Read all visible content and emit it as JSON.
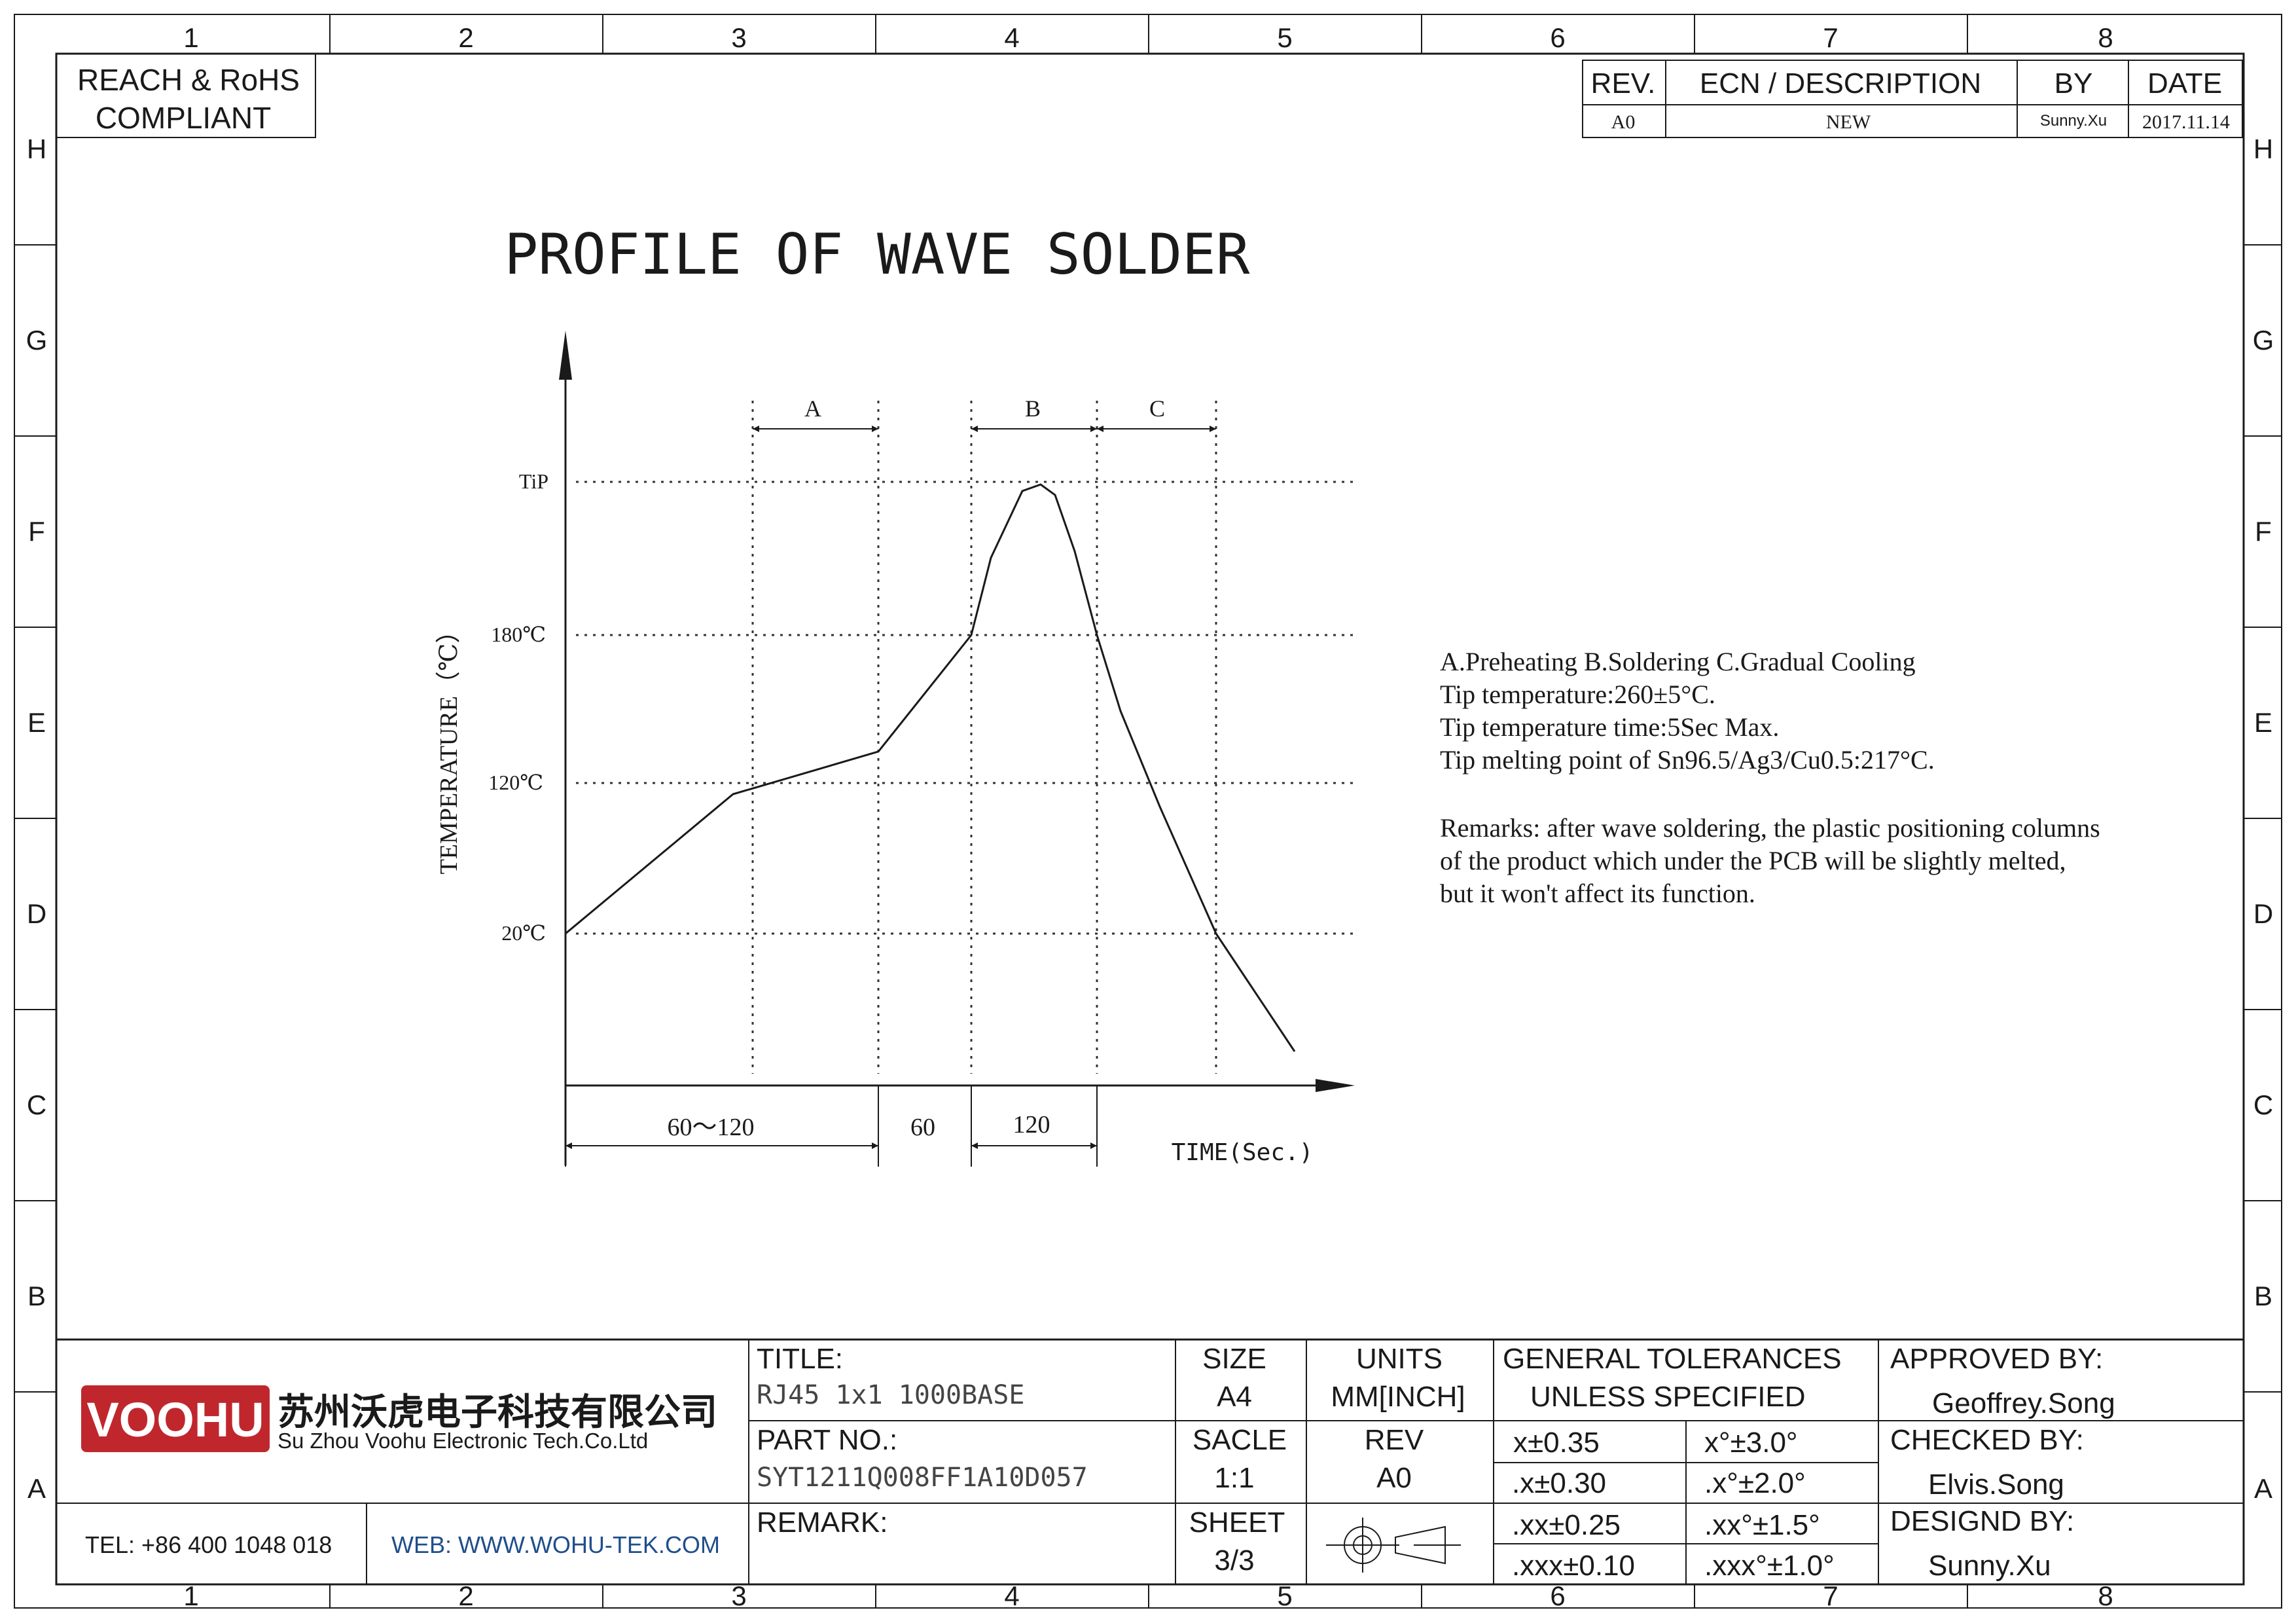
{
  "frame": {
    "columns": [
      "1",
      "2",
      "3",
      "4",
      "5",
      "6",
      "7",
      "8"
    ],
    "rows": [
      "H",
      "G",
      "F",
      "E",
      "D",
      "C",
      "B",
      "A"
    ]
  },
  "compliance": {
    "line1": "REACH & RoHS",
    "line2": "COMPLIANT"
  },
  "revision_table": {
    "headers": {
      "rev": "REV.",
      "desc": "ECN / DESCRIPTION",
      "by": "BY",
      "date": "DATE"
    },
    "row": {
      "rev": "A0",
      "desc": "NEW",
      "by": "Sunny.Xu",
      "date": "2017.11.14"
    }
  },
  "drawing": {
    "title": "PROFILE OF WAVE SOLDER",
    "y_axis_label": "TEMPERATURE（℃）",
    "x_axis_label": "TIME(Sec.)",
    "y_ticks": [
      "TiP",
      "180℃",
      "120℃",
      "20℃"
    ],
    "zones": [
      "A",
      "B",
      "C"
    ],
    "time_segments": [
      "60～120",
      "60",
      "120"
    ]
  },
  "notes": {
    "lines": [
      "A.Preheating  B.Soldering  C.Gradual Cooling",
      "Tip temperature:260±5°C.",
      "Tip temperature time:5Sec Max.",
      "Tip melting point of Sn96.5/Ag3/Cu0.5:217°C."
    ],
    "remarks": [
      "Remarks: after wave soldering, the plastic positioning columns",
      "of the product  which under the PCB will be slightly melted,",
      "but it won't affect its function."
    ]
  },
  "title_block": {
    "logo_text": "VOOHU",
    "company_cn": "苏州沃虎电子科技有限公司",
    "company_en": "Su Zhou Voohu Electronic Tech.Co.Ltd",
    "tel": "TEL: +86 400 1048 018",
    "web": "WEB: WWW.WOHU-TEK.COM",
    "title_label": "TITLE:",
    "title_value": "RJ45 1x1 1000BASE",
    "part_label": "PART NO.:",
    "part_value": "SYT1211Q008FF1A10D057",
    "remark_label": "REMARK:",
    "size_label": "SIZE",
    "size_value": "A4",
    "scale_label": "SACLE",
    "scale_value": "1:1",
    "sheet_label": "SHEET",
    "sheet_value": "3/3",
    "units_label": "UNITS",
    "units_value": "MM[INCH]",
    "rev_label": "REV",
    "rev_value": "A0",
    "tol_title1": "GENERAL TOLERANCES",
    "tol_title2": "UNLESS SPECIFIED",
    "tolerances": [
      {
        "linear": "x±0.35",
        "angular": "x°±3.0°"
      },
      {
        "linear": ".x±0.30",
        "angular": ".x°±2.0°"
      },
      {
        "linear": ".xx±0.25",
        "angular": ".xx°±1.5°"
      },
      {
        "linear": ".xxx±0.10",
        "angular": ".xxx°±1.0°"
      }
    ],
    "approved_label": "APPROVED BY:",
    "approved_value": "Geoffrey.Song",
    "checked_label": "CHECKED BY:",
    "checked_value": "Elvis.Song",
    "designed_label": "DESIGND BY:",
    "designed_value": "Sunny.Xu"
  },
  "colors": {
    "logo": "#c0272d",
    "web": "#1f4e8c",
    "line": "#1a1a1a",
    "dotted": "#333333"
  }
}
